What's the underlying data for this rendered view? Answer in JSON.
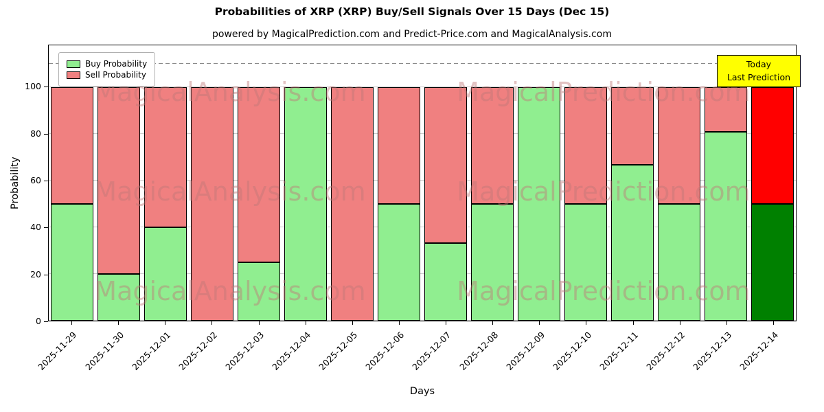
{
  "title": "Probabilities of XRP (XRP) Buy/Sell Signals Over 15 Days (Dec 15)",
  "subtitle": "powered by MagicalPrediction.com and Predict-Price.com and MagicalAnalysis.com",
  "legend": {
    "buy": "Buy Probability",
    "sell": "Sell Probability"
  },
  "axes": {
    "ylabel": "Probability",
    "xlabel": "Days",
    "yticks": [
      0,
      20,
      40,
      60,
      80,
      100
    ],
    "ymax": 118,
    "dashed_line_y": 110
  },
  "annotation": {
    "line1": "Today",
    "line2": "Last Prediction",
    "bg": "#ffff00"
  },
  "colors": {
    "buy": "#90EE90",
    "sell": "#F08080",
    "today_buy": "#008000",
    "today_sell": "#FF0000",
    "grid": "#cccccc",
    "edge": "#000000"
  },
  "watermarks": [
    "MagicalAnalysis.com",
    "MagicalPrediction.com"
  ],
  "chart_data": {
    "type": "bar",
    "stacked": true,
    "title": "Probabilities of XRP (XRP) Buy/Sell Signals Over 15 Days (Dec 15)",
    "xlabel": "Days",
    "ylabel": "Probability",
    "ylim": [
      0,
      118
    ],
    "grid": true,
    "legend_position": "upper left",
    "categories": [
      "2025-11-29",
      "2025-11-30",
      "2025-12-01",
      "2025-12-02",
      "2025-12-03",
      "2025-12-04",
      "2025-12-05",
      "2025-12-06",
      "2025-12-07",
      "2025-12-08",
      "2025-12-09",
      "2025-12-10",
      "2025-12-11",
      "2025-12-12",
      "2025-12-13",
      "2025-12-14"
    ],
    "series": [
      {
        "name": "Buy Probability",
        "values": [
          50,
          20,
          40,
          0,
          25,
          100,
          0,
          50,
          33.3,
          50,
          100,
          50,
          66.7,
          50,
          81,
          50
        ]
      },
      {
        "name": "Sell Probability",
        "values": [
          50,
          80,
          60,
          100,
          75,
          0,
          100,
          50,
          66.7,
          50,
          0,
          50,
          33.3,
          50,
          19,
          50
        ]
      }
    ]
  }
}
